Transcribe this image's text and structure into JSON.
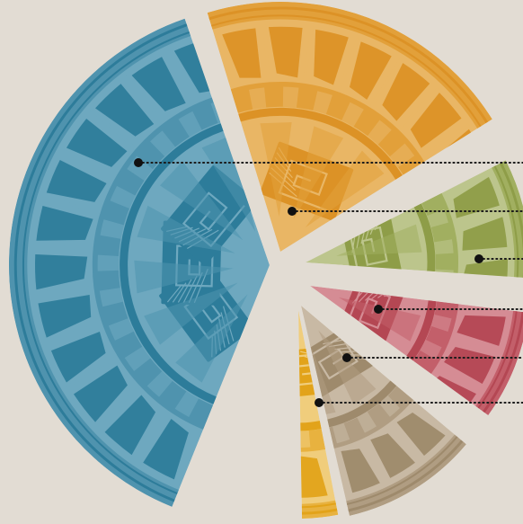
{
  "chart_data": {
    "type": "pie",
    "style": "exploded decorative plate-pattern wedges with dotted leader lines to the right edge",
    "background": "#e2dcd3",
    "slices": [
      {
        "key": "blue",
        "base": "#2d7c9a",
        "mid": "#4f93ae",
        "light": "#6ea8bf"
      },
      {
        "key": "orange",
        "base": "#dc9226",
        "mid": "#e2a03a",
        "light": "#e9b665"
      },
      {
        "key": "olive",
        "base": "#8e9d48",
        "mid": "#a1af60",
        "light": "#bcc58c"
      },
      {
        "key": "red",
        "base": "#b44753",
        "mid": "#c35f6a",
        "light": "#d58c94"
      },
      {
        "key": "taupe",
        "base": "#9e8a6c",
        "mid": "#b09d82",
        "light": "#c8b9a4"
      },
      {
        "key": "gold",
        "base": "#e2a31a",
        "mid": "#e8b23f",
        "light": "#f0cd7c"
      }
    ],
    "leaders": [
      "blue",
      "orange",
      "olive",
      "red",
      "taupe",
      "gold"
    ]
  }
}
